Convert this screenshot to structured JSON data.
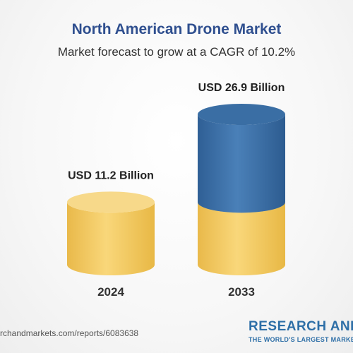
{
  "header": {
    "title": "North American Drone Market",
    "subtitle": "Market forecast to grow at a CAGR of 10.2%"
  },
  "chart_data": {
    "type": "bar",
    "title": "North American Drone Market",
    "subtitle": "Market forecast to grow at a CAGR of 10.2%",
    "categories": [
      "2024",
      "2033"
    ],
    "values": [
      11.2,
      26.9
    ],
    "data_labels": [
      "USD 11.2 Billion",
      "USD 26.9 Billion"
    ],
    "unit": "USD Billion",
    "style": "3d-cylinder",
    "colors": {
      "base_bar": "#f5cf6a",
      "growth_segment": "#3b6fa6"
    },
    "grid": false,
    "legend": "none"
  },
  "footer": {
    "url_text": "rchandmarkets.com/reports/6083638",
    "brand_name": "RESEARCH AND",
    "brand_tagline": "THE WORLD'S LARGEST MARKET"
  },
  "colors": {
    "title": "#2f4f8f",
    "brand": "#2e6fa7"
  }
}
